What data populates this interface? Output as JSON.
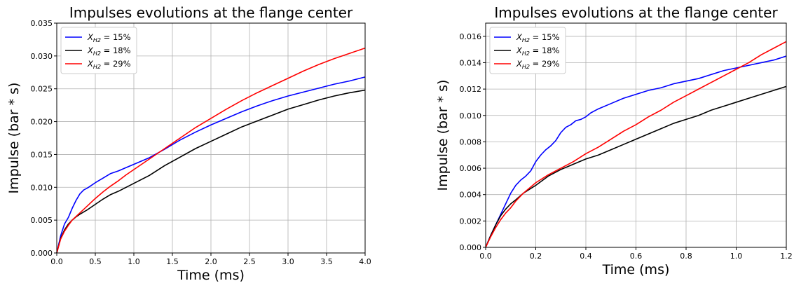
{
  "chart_data": [
    {
      "type": "line",
      "title": "Impulses evolutions at the flange center",
      "xlabel": "Time (ms)",
      "ylabel": "Impulse (bar * s)",
      "xlim": [
        0,
        4.0
      ],
      "ylim": [
        0,
        0.035
      ],
      "xticks": [
        "0.0",
        "0.5",
        "1.0",
        "1.5",
        "2.0",
        "2.5",
        "3.0",
        "3.5",
        "4.0"
      ],
      "yticks": [
        "0.000",
        "0.005",
        "0.010",
        "0.015",
        "0.020",
        "0.025",
        "0.030",
        "0.035"
      ],
      "grid": true,
      "legend_position": "top-left",
      "series": [
        {
          "name": "X_H2 = 15%",
          "name_main": "X",
          "name_sub": "H2",
          "name_suffix": " = 15%",
          "color": "#0000ff",
          "x": [
            0,
            0.05,
            0.1,
            0.15,
            0.2,
            0.25,
            0.3,
            0.35,
            0.4,
            0.5,
            0.6,
            0.7,
            0.8,
            0.9,
            1.0,
            1.2,
            1.4,
            1.6,
            1.8,
            2.0,
            2.2,
            2.4,
            2.6,
            2.8,
            3.0,
            3.2,
            3.4,
            3.6,
            3.8,
            4.0
          ],
          "y": [
            0,
            0.0026,
            0.0044,
            0.0054,
            0.0068,
            0.008,
            0.009,
            0.0096,
            0.0099,
            0.0107,
            0.0114,
            0.0121,
            0.0125,
            0.013,
            0.0135,
            0.0145,
            0.0158,
            0.0172,
            0.0184,
            0.0195,
            0.0205,
            0.0215,
            0.0224,
            0.0232,
            0.0239,
            0.0245,
            0.0251,
            0.0257,
            0.0262,
            0.0268
          ]
        },
        {
          "name": "X_H2 = 18%",
          "name_main": "X",
          "name_sub": "H2",
          "name_suffix": " = 18%",
          "color": "#000000",
          "x": [
            0,
            0.05,
            0.1,
            0.15,
            0.2,
            0.25,
            0.3,
            0.4,
            0.5,
            0.6,
            0.7,
            0.8,
            0.9,
            1.0,
            1.2,
            1.4,
            1.6,
            1.8,
            2.0,
            2.2,
            2.4,
            2.6,
            2.8,
            3.0,
            3.2,
            3.4,
            3.6,
            3.8,
            4.0
          ],
          "y": [
            0,
            0.0022,
            0.0035,
            0.0044,
            0.005,
            0.0055,
            0.0059,
            0.0066,
            0.0074,
            0.0082,
            0.0089,
            0.0094,
            0.01,
            0.0106,
            0.0118,
            0.0133,
            0.0146,
            0.0159,
            0.017,
            0.0181,
            0.0192,
            0.0201,
            0.021,
            0.0219,
            0.0226,
            0.0233,
            0.0239,
            0.0244,
            0.0248
          ]
        },
        {
          "name": "X_H2 = 29%",
          "name_main": "X",
          "name_sub": "H2",
          "name_suffix": " = 29%",
          "color": "#ff0000",
          "x": [
            0,
            0.05,
            0.1,
            0.15,
            0.2,
            0.3,
            0.4,
            0.5,
            0.6,
            0.7,
            0.8,
            0.9,
            1.0,
            1.2,
            1.4,
            1.6,
            1.8,
            2.0,
            2.2,
            2.4,
            2.6,
            2.8,
            3.0,
            3.2,
            3.4,
            3.6,
            3.8,
            4.0
          ],
          "y": [
            0,
            0.0021,
            0.0033,
            0.0042,
            0.005,
            0.0061,
            0.0072,
            0.0083,
            0.0093,
            0.0102,
            0.011,
            0.0119,
            0.0127,
            0.0143,
            0.0159,
            0.0175,
            0.0191,
            0.0205,
            0.0219,
            0.0232,
            0.0244,
            0.0255,
            0.0266,
            0.0277,
            0.0287,
            0.0296,
            0.0304,
            0.0312
          ]
        }
      ]
    },
    {
      "type": "line",
      "title": "Impulses evolutions at the flange center",
      "xlabel": "Time (ms)",
      "ylabel": "Impulse (bar * s)",
      "xlim": [
        0,
        1.2
      ],
      "ylim": [
        0,
        0.017
      ],
      "xticks": [
        "0.0",
        "0.2",
        "0.4",
        "0.6",
        "0.8",
        "1.0",
        "1.2"
      ],
      "yticks": [
        "0.000",
        "0.002",
        "0.004",
        "0.006",
        "0.008",
        "0.010",
        "0.012",
        "0.014",
        "0.016"
      ],
      "grid": true,
      "legend_position": "top-left",
      "series": [
        {
          "name": "X_H2 = 15%",
          "name_main": "X",
          "name_sub": "H2",
          "name_suffix": " = 15%",
          "color": "#0000ff",
          "x": [
            0,
            0.02,
            0.04,
            0.06,
            0.08,
            0.1,
            0.12,
            0.14,
            0.16,
            0.18,
            0.2,
            0.22,
            0.24,
            0.26,
            0.28,
            0.3,
            0.32,
            0.34,
            0.36,
            0.38,
            0.4,
            0.42,
            0.45,
            0.5,
            0.55,
            0.6,
            0.65,
            0.7,
            0.75,
            0.8,
            0.85,
            0.9,
            0.95,
            1.0,
            1.05,
            1.1,
            1.15,
            1.2
          ],
          "y": [
            0,
            0.0009,
            0.0017,
            0.0025,
            0.0033,
            0.0041,
            0.0047,
            0.0051,
            0.0054,
            0.0058,
            0.0065,
            0.007,
            0.0074,
            0.0077,
            0.0081,
            0.0087,
            0.0091,
            0.0093,
            0.0096,
            0.0097,
            0.0099,
            0.0102,
            0.0105,
            0.0109,
            0.0113,
            0.0116,
            0.0119,
            0.0121,
            0.0124,
            0.0126,
            0.0128,
            0.0131,
            0.0134,
            0.0136,
            0.0138,
            0.014,
            0.0142,
            0.0145
          ]
        },
        {
          "name": "X_H2 = 18%",
          "name_main": "X",
          "name_sub": "H2",
          "name_suffix": " = 18%",
          "color": "#000000",
          "x": [
            0,
            0.02,
            0.04,
            0.06,
            0.08,
            0.1,
            0.12,
            0.15,
            0.2,
            0.25,
            0.3,
            0.35,
            0.4,
            0.45,
            0.5,
            0.55,
            0.6,
            0.65,
            0.7,
            0.75,
            0.8,
            0.85,
            0.9,
            0.95,
            1.0,
            1.05,
            1.1,
            1.15,
            1.2
          ],
          "y": [
            0,
            0.0009,
            0.0017,
            0.0024,
            0.0029,
            0.0033,
            0.0036,
            0.0041,
            0.0047,
            0.0054,
            0.0059,
            0.0063,
            0.0067,
            0.007,
            0.0074,
            0.0078,
            0.0082,
            0.0086,
            0.009,
            0.0094,
            0.0097,
            0.01,
            0.0104,
            0.0107,
            0.011,
            0.0113,
            0.0116,
            0.0119,
            0.0122
          ]
        },
        {
          "name": "X_H2 = 29%",
          "name_main": "X",
          "name_sub": "H2",
          "name_suffix": " = 29%",
          "color": "#ff0000",
          "x": [
            0,
            0.02,
            0.04,
            0.06,
            0.08,
            0.1,
            0.12,
            0.15,
            0.2,
            0.25,
            0.3,
            0.35,
            0.4,
            0.45,
            0.5,
            0.55,
            0.6,
            0.65,
            0.7,
            0.75,
            0.8,
            0.85,
            0.9,
            0.95,
            1.0,
            1.05,
            1.1,
            1.15,
            1.2
          ],
          "y": [
            0,
            0.0008,
            0.0015,
            0.0021,
            0.0026,
            0.003,
            0.0035,
            0.0041,
            0.0049,
            0.0055,
            0.006,
            0.0065,
            0.0071,
            0.0076,
            0.0082,
            0.0088,
            0.0093,
            0.0099,
            0.0104,
            0.011,
            0.0115,
            0.012,
            0.0125,
            0.013,
            0.0135,
            0.014,
            0.0146,
            0.0151,
            0.0156
          ]
        }
      ]
    }
  ]
}
